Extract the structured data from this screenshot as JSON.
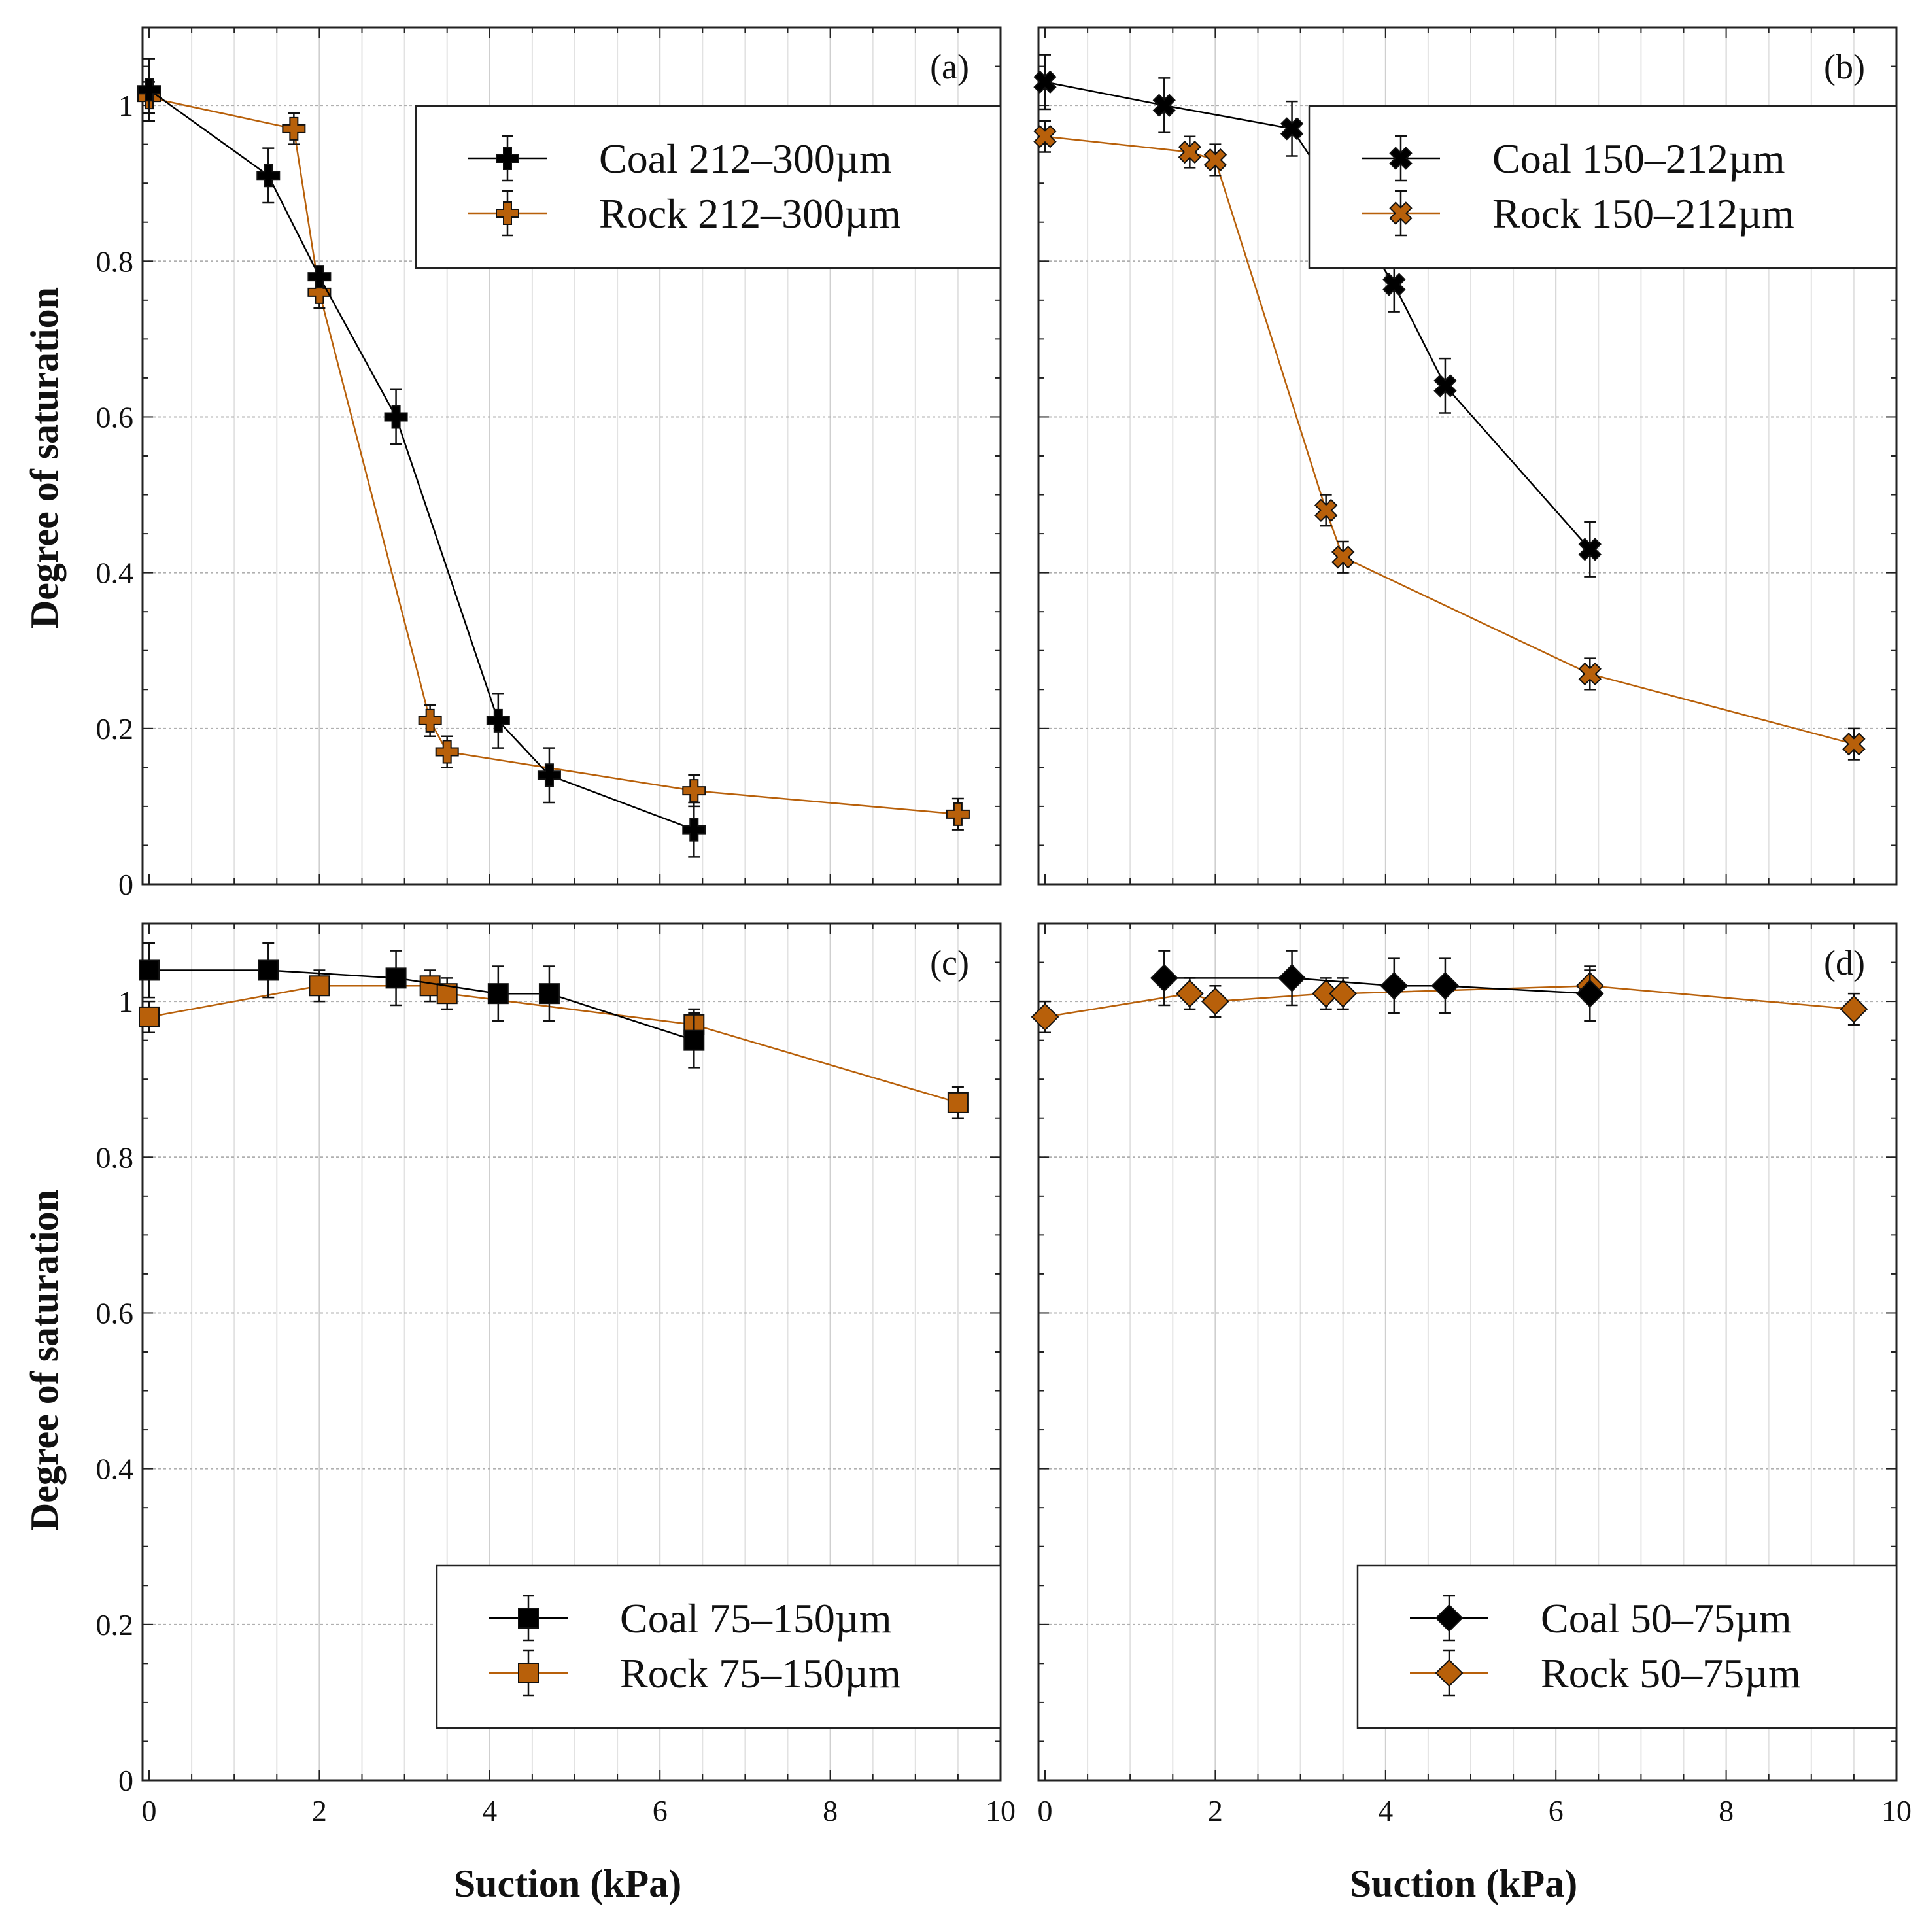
{
  "figure": {
    "ylabel": "Degree of saturation",
    "xlabel": "Suction (kPa)"
  },
  "colors": {
    "coal": "#000000",
    "rock": "#b8600a",
    "grid": "#b0b0b0",
    "minor_grid": "#e2e2e2"
  },
  "chart_data": [
    {
      "type": "line",
      "panel": "(a)",
      "marker": "plus",
      "legend_position": "top-right",
      "xlim": [
        0,
        10
      ],
      "ylim": [
        0,
        1.1
      ],
      "xticks": [
        "0",
        "2",
        "4",
        "6",
        "8",
        "10"
      ],
      "yticks": [
        "0",
        "0.2",
        "0.4",
        "0.6",
        "0.8",
        "1"
      ],
      "series": [
        {
          "name": "Coal 212–300µm",
          "color": "#000000",
          "x": [
            0,
            1.4,
            2.0,
            2.9,
            4.1,
            4.7,
            6.4
          ],
          "y": [
            1.02,
            0.91,
            0.78,
            0.6,
            0.21,
            0.14,
            0.07
          ],
          "err": [
            0.04,
            0.035,
            0,
            0.035,
            0.035,
            0.035,
            0.035
          ]
        },
        {
          "name": "Rock 212–300µm",
          "color": "#b8600a",
          "x": [
            0,
            1.7,
            2.0,
            3.3,
            3.5,
            6.4,
            9.5
          ],
          "y": [
            1.01,
            0.97,
            0.76,
            0.21,
            0.17,
            0.12,
            0.09
          ],
          "err": [
            0.02,
            0.02,
            0.02,
            0.02,
            0.02,
            0.02,
            0.02
          ]
        }
      ]
    },
    {
      "type": "line",
      "panel": "(b)",
      "marker": "x",
      "legend_position": "top-right",
      "xlim": [
        0,
        10
      ],
      "ylim": [
        0,
        1.1
      ],
      "xticks": [
        "0",
        "2",
        "4",
        "6",
        "8",
        "10"
      ],
      "yticks": [
        "0",
        "0.2",
        "0.4",
        "0.6",
        "0.8",
        "1"
      ],
      "series": [
        {
          "name": "Coal 150–212µm",
          "color": "#000000",
          "x": [
            0,
            1.4,
            2.9,
            4.1,
            4.7,
            6.4
          ],
          "y": [
            1.03,
            1.0,
            0.97,
            0.77,
            0.64,
            0.43
          ],
          "err": [
            0.035,
            0.035,
            0.035,
            0.035,
            0.035,
            0.035
          ]
        },
        {
          "name": "Rock 150–212µm",
          "color": "#b8600a",
          "x": [
            0,
            1.7,
            2.0,
            3.3,
            3.5,
            6.4,
            9.5
          ],
          "y": [
            0.96,
            0.94,
            0.93,
            0.48,
            0.42,
            0.27,
            0.18
          ],
          "err": [
            0.02,
            0.02,
            0.02,
            0.02,
            0.02,
            0.02,
            0.02
          ]
        }
      ]
    },
    {
      "type": "line",
      "panel": "(c)",
      "marker": "square",
      "legend_position": "bottom-right",
      "xlim": [
        0,
        10
      ],
      "ylim": [
        0,
        1.1
      ],
      "xticks": [
        "0",
        "2",
        "4",
        "6",
        "8",
        "10"
      ],
      "yticks": [
        "0",
        "0.2",
        "0.4",
        "0.6",
        "0.8",
        "1"
      ],
      "series": [
        {
          "name": "Coal 75–150µm",
          "color": "#000000",
          "x": [
            0,
            1.4,
            2.9,
            4.1,
            4.7,
            6.4
          ],
          "y": [
            1.04,
            1.04,
            1.03,
            1.01,
            1.01,
            0.95
          ],
          "err": [
            0.035,
            0.035,
            0.035,
            0.035,
            0.035,
            0.035
          ]
        },
        {
          "name": "Rock 75–150µm",
          "color": "#b8600a",
          "x": [
            0,
            2.0,
            3.3,
            3.5,
            6.4,
            9.5
          ],
          "y": [
            0.98,
            1.02,
            1.02,
            1.01,
            0.97,
            0.87
          ],
          "err": [
            0.02,
            0.02,
            0.02,
            0.02,
            0.02,
            0.02
          ]
        }
      ]
    },
    {
      "type": "line",
      "panel": "(d)",
      "marker": "diamond",
      "legend_position": "bottom-right",
      "xlim": [
        0,
        10
      ],
      "ylim": [
        0,
        1.1
      ],
      "xticks": [
        "0",
        "2",
        "4",
        "6",
        "8",
        "10"
      ],
      "yticks": [
        "0",
        "0.2",
        "0.4",
        "0.6",
        "0.8",
        "1"
      ],
      "series": [
        {
          "name": "Coal 50–75µm",
          "color": "#000000",
          "x": [
            1.4,
            2.9,
            4.1,
            4.7,
            6.4
          ],
          "y": [
            1.03,
            1.03,
            1.02,
            1.02,
            1.01
          ],
          "err": [
            0.035,
            0.035,
            0.035,
            0.035,
            0.035
          ]
        },
        {
          "name": "Rock 50–75µm",
          "color": "#b8600a",
          "x": [
            0,
            1.7,
            2.0,
            3.3,
            3.5,
            6.4,
            9.5
          ],
          "y": [
            0.98,
            1.01,
            1.0,
            1.01,
            1.01,
            1.02,
            0.99
          ],
          "err": [
            0.02,
            0.02,
            0.02,
            0.02,
            0.02,
            0.02,
            0.02
          ]
        }
      ]
    }
  ]
}
